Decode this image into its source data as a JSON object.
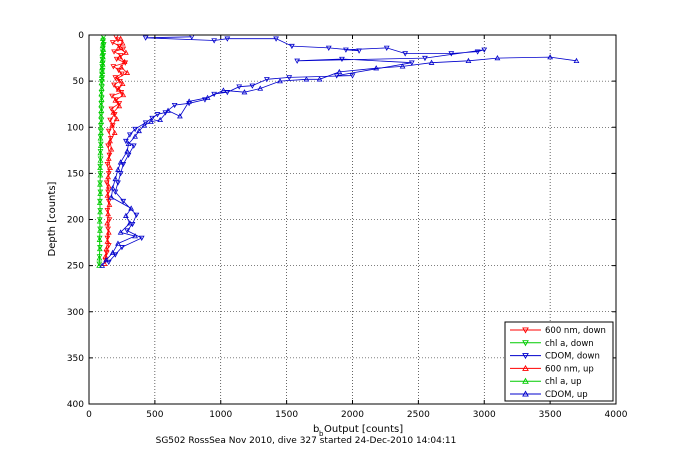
{
  "chart_data": {
    "type": "scatter",
    "title": "",
    "caption": "SG502 RossSea Nov 2010, dive 327 started 24-Dec-2010 14:04:11",
    "xlabel_main": "b",
    "xlabel_sub": "b",
    "xlabel_rest": " Output [counts]",
    "ylabel": "Depth [counts]",
    "xlim": [
      0,
      4000
    ],
    "ylim": [
      0,
      400
    ],
    "y_reversed": true,
    "grid": true,
    "legend_position": "bottom-right",
    "x_ticks": [
      0,
      500,
      1000,
      1500,
      2000,
      2500,
      3000,
      3500,
      4000
    ],
    "y_ticks": [
      0,
      50,
      100,
      150,
      200,
      250,
      300,
      350,
      400
    ],
    "series": [
      {
        "name": "600 nm, down",
        "color": "#ff0000",
        "marker": "triangle-down",
        "points": [
          [
            205,
            2
          ],
          [
            220,
            5
          ],
          [
            180,
            8
          ],
          [
            230,
            12
          ],
          [
            260,
            15
          ],
          [
            190,
            18
          ],
          [
            240,
            22
          ],
          [
            210,
            26
          ],
          [
            275,
            30
          ],
          [
            185,
            34
          ],
          [
            225,
            38
          ],
          [
            250,
            42
          ],
          [
            200,
            46
          ],
          [
            235,
            50
          ],
          [
            190,
            54
          ],
          [
            215,
            58
          ],
          [
            245,
            62
          ],
          [
            175,
            66
          ],
          [
            205,
            70
          ],
          [
            230,
            74
          ],
          [
            170,
            80
          ],
          [
            195,
            86
          ],
          [
            160,
            92
          ],
          [
            180,
            98
          ],
          [
            150,
            104
          ],
          [
            165,
            112
          ],
          [
            145,
            120
          ],
          [
            155,
            130
          ],
          [
            140,
            140
          ],
          [
            150,
            150
          ],
          [
            135,
            160
          ],
          [
            145,
            170
          ],
          [
            150,
            180
          ],
          [
            140,
            190
          ],
          [
            155,
            200
          ],
          [
            145,
            210
          ],
          [
            140,
            220
          ],
          [
            150,
            228
          ],
          [
            135,
            236
          ],
          [
            125,
            244
          ]
        ]
      },
      {
        "name": "chl a, down",
        "color": "#00cc00",
        "marker": "triangle-down",
        "points": [
          [
            110,
            2
          ],
          [
            108,
            6
          ],
          [
            112,
            10
          ],
          [
            106,
            14
          ],
          [
            104,
            18
          ],
          [
            108,
            22
          ],
          [
            102,
            26
          ],
          [
            105,
            30
          ],
          [
            100,
            34
          ],
          [
            103,
            38
          ],
          [
            98,
            42
          ],
          [
            101,
            46
          ],
          [
            97,
            50
          ],
          [
            99,
            56
          ],
          [
            95,
            62
          ],
          [
            97,
            68
          ],
          [
            93,
            74
          ],
          [
            95,
            80
          ],
          [
            92,
            86
          ],
          [
            94,
            92
          ],
          [
            90,
            98
          ],
          [
            92,
            104
          ],
          [
            88,
            110
          ],
          [
            90,
            118
          ],
          [
            87,
            126
          ],
          [
            88,
            134
          ],
          [
            85,
            142
          ],
          [
            87,
            150
          ],
          [
            84,
            160
          ],
          [
            86,
            170
          ],
          [
            83,
            180
          ],
          [
            85,
            190
          ],
          [
            82,
            200
          ],
          [
            84,
            210
          ],
          [
            81,
            220
          ],
          [
            83,
            230
          ],
          [
            80,
            240
          ],
          [
            78,
            248
          ]
        ]
      },
      {
        "name": "CDOM, down",
        "color": "#0000cc",
        "marker": "triangle-down",
        "points": [
          [
            780,
            2
          ],
          [
            430,
            3
          ],
          [
            950,
            6
          ],
          [
            1050,
            4
          ],
          [
            1420,
            4
          ],
          [
            1540,
            12
          ],
          [
            1820,
            14
          ],
          [
            2050,
            17
          ],
          [
            1950,
            16
          ],
          [
            2260,
            14
          ],
          [
            2400,
            20
          ],
          [
            2750,
            20
          ],
          [
            2950,
            18
          ],
          [
            3000,
            16
          ],
          [
            2550,
            25
          ],
          [
            1580,
            28
          ],
          [
            1920,
            26
          ],
          [
            2450,
            30
          ],
          [
            1880,
            44
          ],
          [
            2000,
            44
          ],
          [
            1520,
            46
          ],
          [
            1350,
            48
          ],
          [
            1240,
            55
          ],
          [
            1140,
            56
          ],
          [
            1050,
            62
          ],
          [
            950,
            64
          ],
          [
            880,
            70
          ],
          [
            760,
            74
          ],
          [
            650,
            76
          ],
          [
            580,
            84
          ],
          [
            520,
            86
          ],
          [
            480,
            90
          ],
          [
            430,
            95
          ],
          [
            350,
            102
          ],
          [
            310,
            108
          ],
          [
            280,
            115
          ],
          [
            340,
            120
          ],
          [
            300,
            130
          ],
          [
            260,
            140
          ],
          [
            240,
            150
          ],
          [
            220,
            160
          ],
          [
            200,
            170
          ],
          [
            260,
            180
          ],
          [
            360,
            195
          ],
          [
            330,
            205
          ],
          [
            290,
            212
          ],
          [
            400,
            220
          ],
          [
            250,
            230
          ],
          [
            200,
            238
          ],
          [
            150,
            246
          ]
        ]
      },
      {
        "name": "600 nm, up",
        "color": "#ff0000",
        "marker": "triangle-up",
        "points": [
          [
            240,
            4
          ],
          [
            255,
            9
          ],
          [
            225,
            14
          ],
          [
            280,
            19
          ],
          [
            235,
            24
          ],
          [
            270,
            29
          ],
          [
            245,
            35
          ],
          [
            290,
            41
          ],
          [
            215,
            47
          ],
          [
            255,
            53
          ],
          [
            225,
            59
          ],
          [
            260,
            65
          ],
          [
            200,
            71
          ],
          [
            230,
            77
          ],
          [
            185,
            84
          ],
          [
            210,
            91
          ],
          [
            175,
            98
          ],
          [
            195,
            106
          ],
          [
            160,
            115
          ],
          [
            170,
            124
          ],
          [
            150,
            134
          ],
          [
            160,
            144
          ],
          [
            145,
            154
          ],
          [
            150,
            164
          ],
          [
            140,
            174
          ],
          [
            155,
            184
          ],
          [
            145,
            194
          ],
          [
            138,
            204
          ],
          [
            150,
            214
          ],
          [
            140,
            224
          ],
          [
            132,
            232
          ],
          [
            125,
            240
          ],
          [
            118,
            248
          ]
        ]
      },
      {
        "name": "chl a, up",
        "color": "#00cc00",
        "marker": "triangle-up",
        "points": [
          [
            104,
            4
          ],
          [
            107,
            8
          ],
          [
            103,
            12
          ],
          [
            109,
            16
          ],
          [
            101,
            20
          ],
          [
            106,
            24
          ],
          [
            100,
            28
          ],
          [
            104,
            32
          ],
          [
            98,
            36
          ],
          [
            101,
            40
          ],
          [
            96,
            44
          ],
          [
            99,
            48
          ],
          [
            95,
            52
          ],
          [
            97,
            58
          ],
          [
            93,
            64
          ],
          [
            96,
            70
          ],
          [
            92,
            76
          ],
          [
            94,
            82
          ],
          [
            91,
            88
          ],
          [
            93,
            94
          ],
          [
            89,
            100
          ],
          [
            91,
            106
          ],
          [
            87,
            112
          ],
          [
            89,
            120
          ],
          [
            86,
            128
          ],
          [
            87,
            136
          ],
          [
            84,
            144
          ],
          [
            86,
            152
          ],
          [
            83,
            162
          ],
          [
            85,
            172
          ],
          [
            82,
            182
          ],
          [
            84,
            192
          ],
          [
            81,
            202
          ],
          [
            83,
            212
          ],
          [
            80,
            222
          ],
          [
            82,
            232
          ],
          [
            79,
            242
          ],
          [
            77,
            250
          ]
        ]
      },
      {
        "name": "CDOM, up",
        "color": "#0000cc",
        "marker": "triangle-up",
        "points": [
          [
            3700,
            28
          ],
          [
            3500,
            24
          ],
          [
            3100,
            25
          ],
          [
            2880,
            28
          ],
          [
            2600,
            30
          ],
          [
            2380,
            34
          ],
          [
            2180,
            36
          ],
          [
            1900,
            40
          ],
          [
            1750,
            48
          ],
          [
            1650,
            48
          ],
          [
            1450,
            50
          ],
          [
            1300,
            58
          ],
          [
            1180,
            62
          ],
          [
            1020,
            60
          ],
          [
            900,
            68
          ],
          [
            760,
            72
          ],
          [
            690,
            88
          ],
          [
            600,
            82
          ],
          [
            540,
            92
          ],
          [
            470,
            94
          ],
          [
            420,
            98
          ],
          [
            380,
            104
          ],
          [
            350,
            110
          ],
          [
            300,
            118
          ],
          [
            290,
            126
          ],
          [
            240,
            138
          ],
          [
            220,
            146
          ],
          [
            200,
            156
          ],
          [
            180,
            166
          ],
          [
            170,
            176
          ],
          [
            320,
            188
          ],
          [
            280,
            196
          ],
          [
            310,
            204
          ],
          [
            240,
            214
          ],
          [
            350,
            218
          ],
          [
            220,
            226
          ],
          [
            180,
            236
          ],
          [
            130,
            244
          ],
          [
            100,
            250
          ]
        ]
      }
    ]
  }
}
